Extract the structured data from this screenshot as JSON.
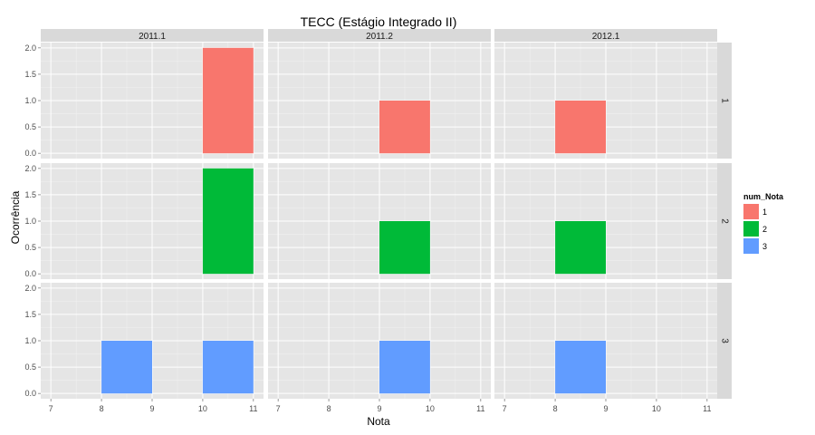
{
  "chart_data": {
    "type": "bar",
    "title": "TECC (Estágio Integrado II)",
    "xlabel": "Nota",
    "ylabel": "Ocorrência",
    "xlim": [
      6.8,
      11.2
    ],
    "ylim": [
      -0.1,
      2.1
    ],
    "x_ticks": [
      "7",
      "8",
      "9",
      "10",
      "11"
    ],
    "y_ticks": [
      "0.0",
      "0.5",
      "1.0",
      "1.5",
      "2.0"
    ],
    "grid": true,
    "legend_position": "right",
    "columns": [
      "2011.1",
      "2011.2",
      "2012.1"
    ],
    "rows": [
      "1",
      "2",
      "3"
    ],
    "legend": {
      "title": "num_Nota",
      "items": [
        {
          "label": "1",
          "color": "#F8766D"
        },
        {
          "label": "2",
          "color": "#00BA38"
        },
        {
          "label": "3",
          "color": "#619CFF"
        }
      ]
    },
    "bars": [
      {
        "column": "2011.1",
        "row": "1",
        "x_start": 10,
        "x_end": 11,
        "value": 2
      },
      {
        "column": "2011.2",
        "row": "1",
        "x_start": 9,
        "x_end": 10,
        "value": 1
      },
      {
        "column": "2012.1",
        "row": "1",
        "x_start": 8,
        "x_end": 9,
        "value": 1
      },
      {
        "column": "2011.1",
        "row": "2",
        "x_start": 10,
        "x_end": 11,
        "value": 2
      },
      {
        "column": "2011.2",
        "row": "2",
        "x_start": 9,
        "x_end": 10,
        "value": 1
      },
      {
        "column": "2012.1",
        "row": "2",
        "x_start": 8,
        "x_end": 9,
        "value": 1
      },
      {
        "column": "2011.1",
        "row": "3",
        "x_start": 8,
        "x_end": 9,
        "value": 1
      },
      {
        "column": "2011.1",
        "row": "3",
        "x_start": 10,
        "x_end": 11,
        "value": 1
      },
      {
        "column": "2011.2",
        "row": "3",
        "x_start": 9,
        "x_end": 10,
        "value": 1
      },
      {
        "column": "2012.1",
        "row": "3",
        "x_start": 8,
        "x_end": 9,
        "value": 1
      }
    ]
  }
}
